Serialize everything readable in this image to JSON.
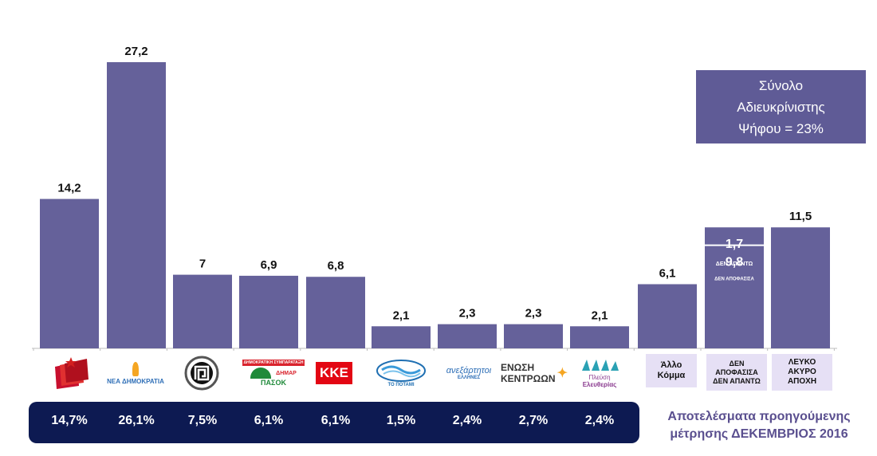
{
  "chart_data": {
    "type": "bar",
    "categories": [
      "ΣΥΡΙΖΑ",
      "ΝΕΑ ΔΗΜΟΚΡΑΤΙΑ",
      "ΧΡΥΣΗ ΑΥΓΗ",
      "ΠΑΣΟΚ",
      "ΚΚΕ",
      "ΤΟ ΠΟΤΑΜΙ",
      "ΑΝΕΞΑΡΤΗΤΟΙ ΕΛΛΗΝΕΣ",
      "ΕΝΩΣΗ ΚΕΝΤΡΩΩΝ",
      "ΠΛΕΥΣΗ ΕΛΕΥΘΕΡΙΑΣ",
      "Άλλο Κόμμα",
      "ΔΕΝ ΑΠΟΦΑΣΙΣΑ / ΔΕΝ ΑΠΑΝΤΩ",
      "ΛΕΥΚΟ ΑΚΥΡΟ ΑΠΟΧΗ"
    ],
    "values": [
      14.2,
      27.2,
      7,
      6.9,
      6.8,
      2.1,
      2.3,
      2.3,
      2.1,
      6.1,
      11.5,
      11.5
    ],
    "value_labels": [
      "14,2",
      "27,2",
      "7",
      "6,9",
      "6,8",
      "2,1",
      "2,3",
      "2,3",
      "2,1",
      "6,1",
      "",
      "11,5"
    ],
    "stacked_segments": {
      "index": 10,
      "segments": [
        {
          "value": 9.8,
          "label": "9,8",
          "sub_label": "ΔΕΝ ΑΠΟΦΑΣΙΣΑ"
        },
        {
          "value": 1.7,
          "label": "1,7",
          "sub_label": "ΔΕΝ ΑΠΑΝΤΩ"
        }
      ]
    },
    "previous_values": [
      "14,7%",
      "26,1%",
      "7,5%",
      "6,1%",
      "6,1%",
      "1,5%",
      "2,4%",
      "2,7%",
      "2,4%"
    ],
    "bar_color": "#65619a",
    "ylim": [
      0,
      30
    ]
  },
  "info_box": {
    "line1": "Σύνολο",
    "line2": "Αδιευκρίνιστης",
    "line3": "Ψήφου = 23%"
  },
  "logos": {
    "nd": "ΝΕΑ ΔΗΜΟΚΡΑΤΙΑ",
    "pasok_banner": "ΔΗΜΟΚΡΑΤΙΚΗ ΣΥΜΠΑΡΑΤΑΞΗ",
    "pasok": "ΠΑΣΟΚ",
    "pasok_dimar": "ΔΗΜΑΡ",
    "kke": "ΚΚΕ",
    "potami": "ΤΟ ΠΟΤΑΜΙ",
    "anel": "ανεξάρτητοι",
    "anel_sub": "ΕΛΛΗΝΕΣ",
    "enosi1": "ΕΝΩΣΗ",
    "enosi2": "ΚΕΝΤΡΩΩΝ",
    "plefsi1": "Πλεύση",
    "plefsi2": "Ελευθερίας",
    "allo1": "Άλλο",
    "allo2": "Κόμμα",
    "den1": "ΔΕΝ",
    "den2": "ΑΠΟΦΑΣΙΣΑ",
    "den3": "ΔΕΝ ΑΠΑΝΤΩ",
    "lefko1": "ΛΕΥΚΟ",
    "lefko2": "ΑΚΥΡΟ",
    "lefko3": "ΑΠΟΧΗ"
  },
  "caption": {
    "line1": "Αποτελέσματα προηγούμενης",
    "line2": "μέτρησης ΔΕΚΕΜΒΡΙΟΣ 2016"
  },
  "colors": {
    "bar": "#65619a",
    "info_box": "#5f5b96",
    "prev_bar": "#0d1a52",
    "caption": "#5a4f8f",
    "kke_red": "#e30613"
  }
}
